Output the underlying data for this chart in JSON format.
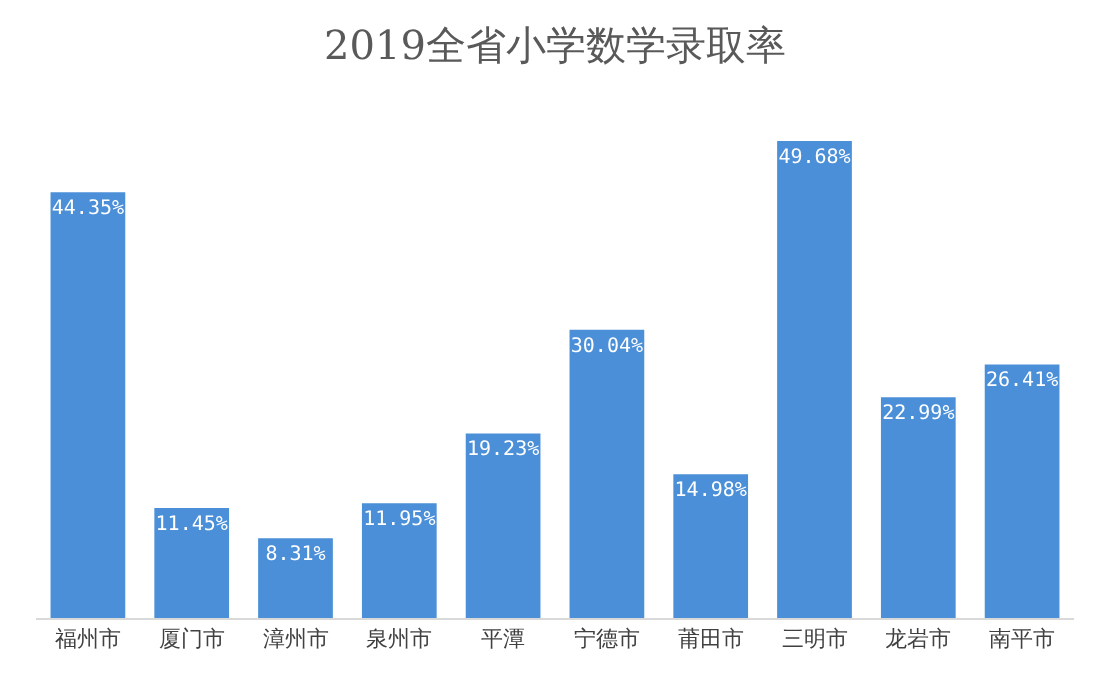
{
  "chart_data": {
    "type": "bar",
    "title": "2019全省小学数学录取率",
    "categories": [
      "福州市",
      "厦门市",
      "漳州市",
      "泉州市",
      "平潭",
      "宁德市",
      "莆田市",
      "三明市",
      "龙岩市",
      "南平市"
    ],
    "values": [
      44.35,
      11.45,
      8.31,
      11.95,
      19.23,
      30.04,
      14.98,
      49.68,
      22.99,
      26.41
    ],
    "value_labels": [
      "44.35%",
      "11.45%",
      "8.31%",
      "11.95%",
      "19.23%",
      "30.04%",
      "14.98%",
      "49.68%",
      "22.99%",
      "26.41%"
    ],
    "color": "#4a8fd8"
  }
}
